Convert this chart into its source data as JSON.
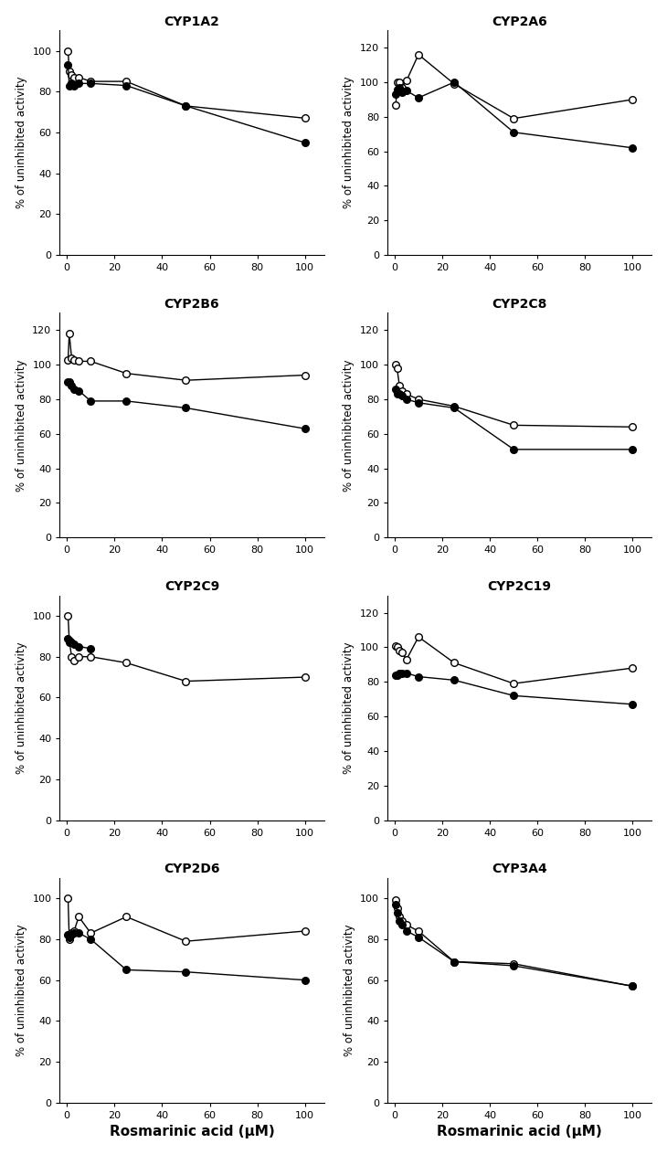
{
  "subplots": [
    {
      "title": "CYP1A2",
      "ylim": [
        0,
        110
      ],
      "yticks": [
        0,
        20,
        40,
        60,
        80,
        100
      ],
      "open": {
        "x": [
          0.5,
          1,
          2,
          3,
          5,
          10,
          25,
          50,
          100
        ],
        "y": [
          100,
          90,
          88,
          87,
          87,
          85,
          85,
          73,
          67
        ]
      },
      "filled": {
        "x": [
          0.5,
          1,
          2,
          3,
          5,
          10,
          25,
          50,
          100
        ],
        "y": [
          93,
          83,
          84,
          83,
          84,
          84,
          83,
          73,
          55
        ]
      }
    },
    {
      "title": "CYP2A6",
      "ylim": [
        0,
        130
      ],
      "yticks": [
        0,
        20,
        40,
        60,
        80,
        100,
        120
      ],
      "open": {
        "x": [
          0.5,
          1,
          2,
          3,
          5,
          10,
          25,
          50,
          100
        ],
        "y": [
          87,
          100,
          100,
          97,
          101,
          116,
          99,
          79,
          90
        ]
      },
      "filled": {
        "x": [
          0.5,
          1,
          2,
          3,
          5,
          10,
          25,
          50,
          100
        ],
        "y": [
          93,
          96,
          97,
          94,
          95,
          91,
          100,
          71,
          62
        ]
      }
    },
    {
      "title": "CYP2B6",
      "ylim": [
        0,
        130
      ],
      "yticks": [
        0,
        20,
        40,
        60,
        80,
        100,
        120
      ],
      "open": {
        "x": [
          0.5,
          1,
          2,
          3,
          5,
          10,
          25,
          50,
          100
        ],
        "y": [
          103,
          118,
          104,
          103,
          102,
          102,
          95,
          91,
          94
        ]
      },
      "filled": {
        "x": [
          0.5,
          1,
          2,
          3,
          5,
          10,
          25,
          50,
          100
        ],
        "y": [
          90,
          90,
          88,
          86,
          85,
          79,
          79,
          75,
          63
        ]
      }
    },
    {
      "title": "CYP2C8",
      "ylim": [
        0,
        130
      ],
      "yticks": [
        0,
        20,
        40,
        60,
        80,
        100,
        120
      ],
      "open": {
        "x": [
          0.5,
          1,
          2,
          3,
          5,
          10,
          25,
          50,
          100
        ],
        "y": [
          100,
          98,
          88,
          85,
          83,
          80,
          76,
          65,
          64
        ]
      },
      "filled": {
        "x": [
          0.5,
          1,
          2,
          3,
          5,
          10,
          25,
          50,
          100
        ],
        "y": [
          86,
          83,
          83,
          82,
          80,
          78,
          75,
          51,
          51
        ]
      }
    },
    {
      "title": "CYP2C9",
      "ylim": [
        0,
        110
      ],
      "yticks": [
        0,
        20,
        40,
        60,
        80,
        100
      ],
      "open": {
        "x": [
          0.5,
          1,
          2,
          3,
          5,
          10,
          25,
          50,
          100
        ],
        "y": [
          100,
          88,
          80,
          78,
          80,
          80,
          77,
          68,
          70
        ]
      },
      "filled": {
        "x": [
          0.5,
          1,
          2,
          3,
          5,
          10
        ],
        "y": [
          89,
          87,
          87,
          86,
          85,
          84
        ]
      }
    },
    {
      "title": "CYP2C19",
      "ylim": [
        0,
        130
      ],
      "yticks": [
        0,
        20,
        40,
        60,
        80,
        100,
        120
      ],
      "open": {
        "x": [
          0.5,
          1,
          2,
          3,
          5,
          10,
          25,
          50,
          100
        ],
        "y": [
          101,
          100,
          98,
          97,
          93,
          106,
          91,
          79,
          88
        ]
      },
      "filled": {
        "x": [
          0.5,
          1,
          2,
          3,
          5,
          10,
          25,
          50,
          100
        ],
        "y": [
          84,
          84,
          85,
          85,
          85,
          83,
          81,
          72,
          67
        ]
      }
    },
    {
      "title": "CYP2D6",
      "ylim": [
        0,
        110
      ],
      "yticks": [
        0,
        20,
        40,
        60,
        80,
        100
      ],
      "open": {
        "x": [
          0.5,
          1,
          2,
          3,
          5,
          10,
          25,
          50,
          100
        ],
        "y": [
          100,
          80,
          83,
          84,
          91,
          83,
          91,
          79,
          84
        ]
      },
      "filled": {
        "x": [
          0.5,
          1,
          2,
          3,
          5,
          10,
          25,
          50,
          100
        ],
        "y": [
          82,
          81,
          82,
          83,
          83,
          80,
          65,
          64,
          60
        ]
      }
    },
    {
      "title": "CYP3A4",
      "ylim": [
        0,
        110
      ],
      "yticks": [
        0,
        20,
        40,
        60,
        80,
        100
      ],
      "open": {
        "x": [
          0.5,
          1,
          2,
          3,
          5,
          10,
          25,
          50,
          100
        ],
        "y": [
          99,
          95,
          91,
          89,
          87,
          84,
          69,
          68,
          57
        ]
      },
      "filled": {
        "x": [
          0.5,
          1,
          2,
          3,
          5,
          10,
          25,
          50,
          100
        ],
        "y": [
          97,
          93,
          89,
          87,
          84,
          81,
          69,
          67,
          57
        ]
      }
    }
  ],
  "xlabel": "Rosmarinic acid (μM)",
  "ylabel": "% of uninhibited activity",
  "open_style": {
    "marker": "o",
    "markerfacecolor": "white",
    "markeredgecolor": "black",
    "color": "black",
    "markersize": 5.5,
    "linewidth": 1.0
  },
  "filled_style": {
    "marker": "o",
    "markerfacecolor": "black",
    "markeredgecolor": "black",
    "color": "black",
    "markersize": 5.5,
    "linewidth": 1.0
  },
  "xticks": [
    0,
    20,
    40,
    60,
    80,
    100
  ],
  "xlim": [
    -3,
    108
  ],
  "title_fontsize": 10,
  "label_fontsize": 8.5,
  "tick_fontsize": 8,
  "xlabel_fontsize": 11,
  "xlabel_fontweight": "bold"
}
